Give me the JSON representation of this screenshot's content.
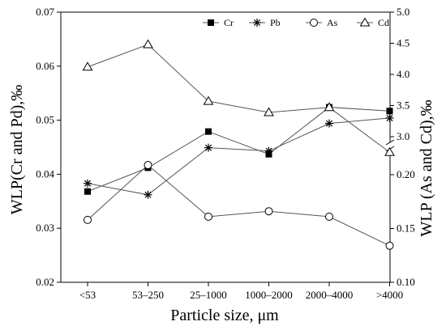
{
  "chart_data": {
    "type": "line",
    "xlabel": "Particle size, μm",
    "ylabel_left": "WLP(Cr and Pd),‰",
    "ylabel_right": "WLP (As and Cd),‰",
    "categories": [
      "<53",
      "53–250",
      "25–1000",
      "1000–2000",
      "2000–4000",
      ">4000"
    ],
    "y_left": {
      "lim": [
        0.02,
        0.07
      ],
      "ticks": [
        "0.02",
        "0.03",
        "0.04",
        "0.05",
        "0.06",
        "0.07"
      ]
    },
    "y_right_lower": {
      "lim": [
        0.1,
        0.24
      ],
      "ticks": [
        "0.10",
        "0.15",
        "0.20"
      ]
    },
    "y_right_upper": {
      "lim": [
        2.5,
        5.0
      ],
      "ticks": [
        "3.0",
        "3.5",
        "4.0",
        "4.5",
        "5.0"
      ]
    },
    "legend_position": "top-right",
    "series": [
      {
        "name": "Cr",
        "axis": "left",
        "marker": "square",
        "values": [
          0.0368,
          0.0412,
          0.0479,
          0.0437,
          0.0524,
          0.0517
        ]
      },
      {
        "name": "Pb",
        "axis": "left",
        "marker": "asterisk",
        "values": [
          0.0383,
          0.0362,
          0.0449,
          0.0443,
          0.0494,
          0.0504
        ]
      },
      {
        "name": "As",
        "axis": "right_lower",
        "marker": "circle",
        "values": [
          0.158,
          0.209,
          0.161,
          0.166,
          0.161,
          0.134
        ]
      },
      {
        "name": "Cd",
        "axis": "right_upper",
        "marker": "triangle",
        "values": [
          4.12,
          4.48,
          3.57,
          3.39,
          3.47,
          2.75
        ]
      }
    ]
  }
}
